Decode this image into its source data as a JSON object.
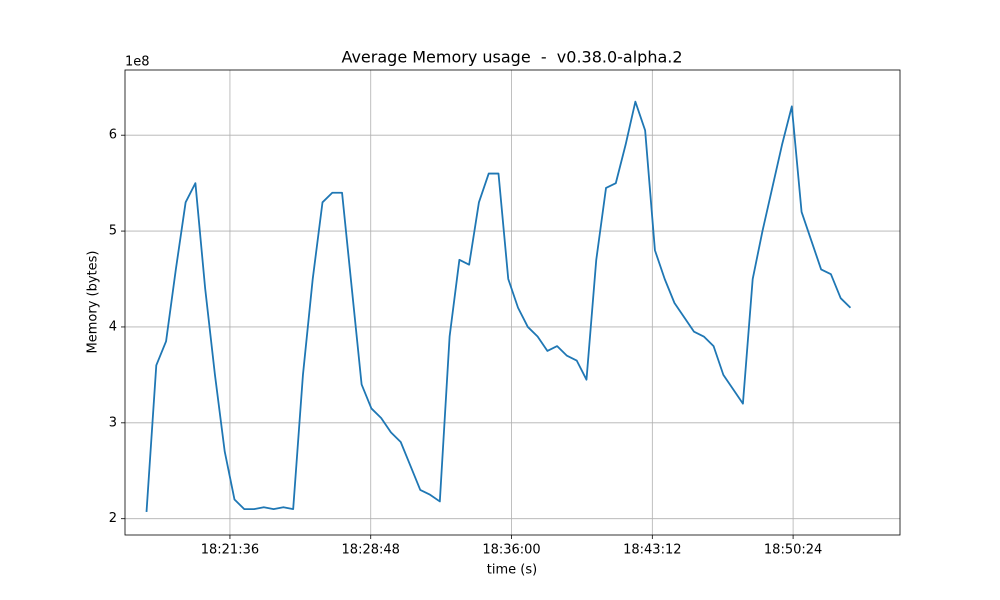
{
  "chart_data": {
    "type": "line",
    "title": "Average Memory usage  -  v0.38.0-alpha.2",
    "xlabel": "time (s)",
    "ylabel": "Memory (bytes)",
    "y_offset_label": "1e8",
    "color": "#1f77b4",
    "grid": true,
    "xlim": [
      "18:16:14",
      "18:55:52"
    ],
    "xticks": [
      "18:21:36",
      "18:28:48",
      "18:36:00",
      "18:43:12",
      "18:50:24"
    ],
    "ylim": [
      1.83,
      6.68
    ],
    "yticks": [
      2,
      3,
      4,
      5,
      6
    ],
    "x": [
      "18:17:20",
      "18:17:50",
      "18:18:20",
      "18:18:50",
      "18:19:20",
      "18:19:50",
      "18:20:20",
      "18:20:50",
      "18:21:20",
      "18:21:50",
      "18:22:20",
      "18:22:50",
      "18:23:20",
      "18:23:50",
      "18:24:20",
      "18:24:50",
      "18:25:20",
      "18:25:50",
      "18:26:20",
      "18:26:50",
      "18:27:20",
      "18:27:50",
      "18:28:20",
      "18:28:50",
      "18:29:20",
      "18:29:50",
      "18:30:20",
      "18:30:50",
      "18:31:20",
      "18:31:50",
      "18:32:20",
      "18:32:50",
      "18:33:20",
      "18:33:50",
      "18:34:20",
      "18:34:50",
      "18:35:20",
      "18:35:50",
      "18:36:20",
      "18:36:50",
      "18:37:20",
      "18:37:50",
      "18:38:20",
      "18:38:50",
      "18:39:20",
      "18:39:50",
      "18:40:20",
      "18:40:50",
      "18:41:20",
      "18:41:50",
      "18:42:20",
      "18:42:50",
      "18:43:20",
      "18:43:50",
      "18:44:20",
      "18:44:50",
      "18:45:20",
      "18:45:50",
      "18:46:20",
      "18:46:50",
      "18:47:20",
      "18:47:50",
      "18:48:20",
      "18:48:50",
      "18:49:20",
      "18:49:50",
      "18:50:20",
      "18:50:50",
      "18:51:20",
      "18:51:50",
      "18:52:20",
      "18:52:50",
      "18:53:20"
    ],
    "values": [
      2.07,
      3.6,
      3.85,
      4.6,
      5.3,
      5.5,
      4.4,
      3.5,
      2.7,
      2.2,
      2.1,
      2.1,
      2.12,
      2.1,
      2.12,
      2.1,
      3.5,
      4.5,
      5.3,
      5.4,
      5.4,
      4.4,
      3.4,
      3.15,
      3.05,
      2.9,
      2.8,
      2.55,
      2.3,
      2.25,
      2.18,
      3.9,
      4.7,
      4.65,
      5.3,
      5.6,
      5.6,
      4.5,
      4.2,
      4.0,
      3.9,
      3.75,
      3.8,
      3.7,
      3.65,
      3.45,
      4.7,
      5.45,
      5.5,
      5.9,
      6.35,
      6.05,
      4.8,
      4.5,
      4.25,
      4.1,
      3.95,
      3.9,
      3.8,
      3.5,
      3.35,
      3.2,
      4.5,
      5.0,
      5.45,
      5.9,
      6.3,
      5.2,
      4.9,
      4.6,
      4.55,
      4.3,
      4.2
    ]
  }
}
